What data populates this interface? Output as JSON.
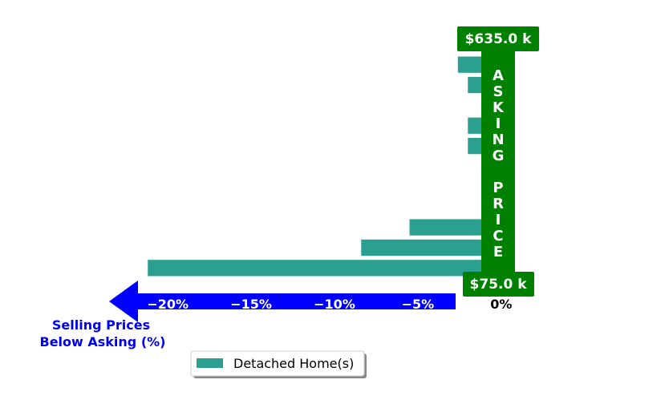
{
  "chart_data": {
    "type": "bar",
    "orientation": "horizontal",
    "series": [
      {
        "name": "Detached Home(s)",
        "color": "#2ca090",
        "values": [
          -2.6,
          -2.0,
          0.2,
          -2.0,
          -2.0,
          0.2,
          0.2,
          0.2,
          -5.5,
          -8.4,
          -21.2
        ]
      }
    ],
    "xlim": [
      -21.5,
      1.5
    ],
    "x_ticks": [
      {
        "value": -20,
        "label": "−20%"
      },
      {
        "value": -15,
        "label": "−15%"
      },
      {
        "value": -10,
        "label": "−10%"
      },
      {
        "value": -5,
        "label": "−5%"
      },
      {
        "value": 0,
        "label": "0%"
      }
    ],
    "xlabel": "Selling Prices\nBelow Asking (%)",
    "price_top_label": "$635.0 k",
    "price_bottom_label": "$75.0 k",
    "vertical_label": "ASKING PRICE",
    "legend_position": "bottom-center",
    "colors": {
      "bar": "#2ca090",
      "asking_band": "#008000",
      "arrow": "#0000ff",
      "axis_label": "#0000ee"
    }
  }
}
